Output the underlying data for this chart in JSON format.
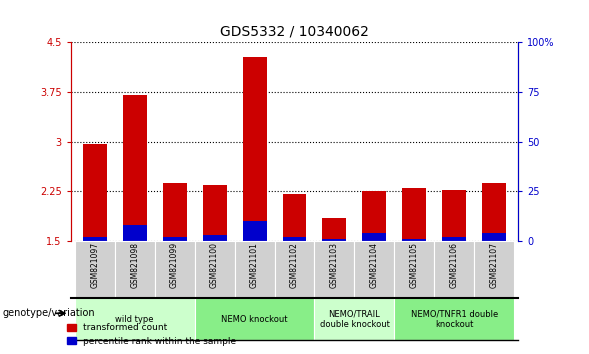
{
  "title": "GDS5332 / 10340062",
  "samples": [
    "GSM821097",
    "GSM821098",
    "GSM821099",
    "GSM821100",
    "GSM821101",
    "GSM821102",
    "GSM821103",
    "GSM821104",
    "GSM821105",
    "GSM821106",
    "GSM821107"
  ],
  "transformed_count": [
    2.97,
    3.7,
    2.38,
    2.35,
    4.28,
    2.2,
    1.85,
    2.25,
    2.3,
    2.27,
    2.38
  ],
  "percentile_rank": [
    2.0,
    8.0,
    2.0,
    3.0,
    10.0,
    2.0,
    1.0,
    4.0,
    1.0,
    2.0,
    4.0
  ],
  "bar_bottom": 1.5,
  "ylim_left": [
    1.5,
    4.5
  ],
  "ylim_right": [
    0,
    100
  ],
  "yticks_left": [
    1.5,
    2.25,
    3.0,
    3.75,
    4.5
  ],
  "yticks_right": [
    0,
    25,
    50,
    75,
    100
  ],
  "ytick_labels_left": [
    "1.5",
    "2.25",
    "3",
    "3.75",
    "4.5"
  ],
  "ytick_labels_right": [
    "0",
    "25",
    "50",
    "75",
    "100%"
  ],
  "red_color": "#cc0000",
  "blue_color": "#0000cc",
  "groups": [
    {
      "label": "wild type",
      "start": 0,
      "end": 3,
      "color": "#ccffcc"
    },
    {
      "label": "NEMO knockout",
      "start": 3,
      "end": 6,
      "color": "#88ee88"
    },
    {
      "label": "NEMO/TRAIL\ndouble knockout",
      "start": 6,
      "end": 8,
      "color": "#ccffcc"
    },
    {
      "label": "NEMO/TNFR1 double\nknockout",
      "start": 8,
      "end": 11,
      "color": "#88ee88"
    }
  ],
  "bar_width": 0.6,
  "grid_color": "black",
  "legend_labels": [
    "transformed count",
    "percentile rank within the sample"
  ],
  "legend_colors": [
    "#cc0000",
    "#0000cc"
  ],
  "genotype_label": "genotype/variation"
}
